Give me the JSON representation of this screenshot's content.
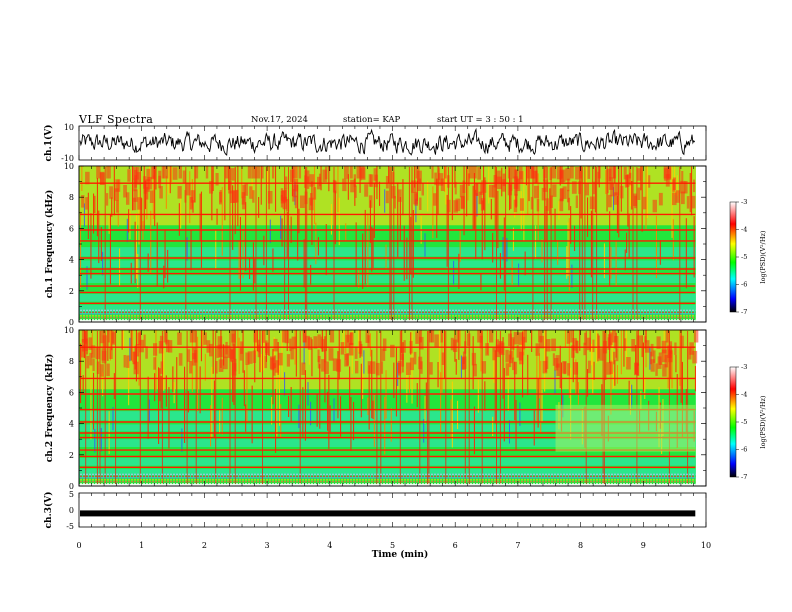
{
  "header": {
    "title": "VLF Spectra",
    "date": "Nov.17, 2024",
    "station": "station= KAP",
    "start": "start  UT  =   3  : 50 : 1"
  },
  "colors": {
    "waveform": "#000000",
    "colormap": [
      "#000000",
      "#0000ff",
      "#00ffff",
      "#00ff00",
      "#ffff00",
      "#ff0000",
      "#ffffff"
    ]
  },
  "chart_data": [
    {
      "id": "ch1-waveform",
      "type": "line",
      "ylabel": "ch.1(V)",
      "ylim": [
        -10,
        10
      ],
      "yticks": [
        10,
        -10
      ],
      "xlim": [
        0,
        9.83
      ],
      "description_values": "dense random waveform, amplitude roughly -6 to 6 V"
    },
    {
      "id": "ch1-spectrogram",
      "type": "heatmap",
      "ylabel": "ch.1 Frequency (kHz)",
      "ylim": [
        0,
        10
      ],
      "yticks": [
        "0",
        "2",
        "4",
        "6",
        "8",
        "10"
      ],
      "xlim": [
        0,
        9.83
      ],
      "bands_khz": [
        1.2,
        1.9,
        2.3,
        3.1,
        3.4,
        4.1,
        5.2,
        5.9,
        6.9,
        8.9
      ],
      "colorbar": {
        "label": "log(PSD)(V²/Hz)",
        "range": [
          -7,
          -3
        ],
        "ticks": [
          "-3",
          "-4",
          "-5",
          "-6",
          "-7"
        ]
      }
    },
    {
      "id": "ch2-spectrogram",
      "type": "heatmap",
      "ylabel": "ch.2 Frequency (kHz)",
      "ylim": [
        0,
        10
      ],
      "yticks": [
        "0",
        "2",
        "4",
        "6",
        "8",
        "10"
      ],
      "xlim": [
        0,
        9.83
      ],
      "bands_khz": [
        1.2,
        1.9,
        2.3,
        3.1,
        3.4,
        4.1,
        4.9,
        5.9,
        6.9,
        8.9
      ],
      "colorbar": {
        "label": "log(PSD)(V²/Hz)",
        "range": [
          -7,
          -3
        ],
        "ticks": [
          "-3",
          "-4",
          "-5",
          "-6",
          "-7"
        ]
      }
    },
    {
      "id": "ch3-waveform",
      "type": "line",
      "ylabel": "ch.3(V)",
      "ylim": [
        -5,
        5
      ],
      "yticks": [
        "5",
        "0",
        "-5"
      ],
      "xlim": [
        0,
        9.83
      ],
      "level": -1,
      "xlabel": "Time  (min)",
      "xticks": [
        "0",
        "1",
        "2",
        "3",
        "4",
        "5",
        "6",
        "7",
        "8",
        "9",
        "10"
      ],
      "xrange_axis": [
        0,
        10
      ]
    }
  ]
}
